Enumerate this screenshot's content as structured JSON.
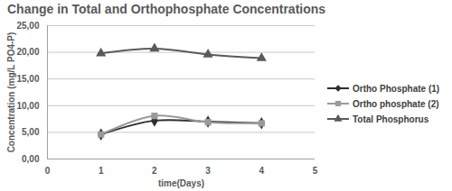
{
  "chart_data": {
    "type": "line",
    "title": "Change in Total and Orthophosphate Concentrations",
    "x_label": "time(Days)",
    "y_label": "Concentration (mg/L PO4-P)",
    "x": [
      1,
      2,
      3,
      4
    ],
    "series": [
      {
        "name": "Ortho Phosphate (1)",
        "color": "#2f2f2f",
        "marker": "diamond",
        "line_style": "solid",
        "values": [
          4.6,
          7.2,
          7.0,
          6.7
        ]
      },
      {
        "name": "Ortho phosphate (2)",
        "color": "#9a9a9a",
        "marker": "square",
        "line_style": "solid",
        "values": [
          4.6,
          8.1,
          6.9,
          6.7
        ]
      },
      {
        "name": "Total Phosphorus",
        "color": "#5a5a5a",
        "marker": "triangle",
        "line_style": "solid",
        "values": [
          19.8,
          20.7,
          19.6,
          18.9
        ]
      }
    ],
    "xlim": [
      0,
      5
    ],
    "xticks": [
      0,
      1,
      2,
      3,
      4,
      5
    ],
    "ylim": [
      0,
      25
    ],
    "yticks": [
      {
        "value": 0,
        "label": "0,00"
      },
      {
        "value": 5,
        "label": "5,00"
      },
      {
        "value": 10,
        "label": "10,00"
      },
      {
        "value": 15,
        "label": "15,00"
      },
      {
        "value": 20,
        "label": "20,00"
      },
      {
        "value": 25,
        "label": "25,00"
      }
    ],
    "grid": true,
    "legend": "right"
  }
}
